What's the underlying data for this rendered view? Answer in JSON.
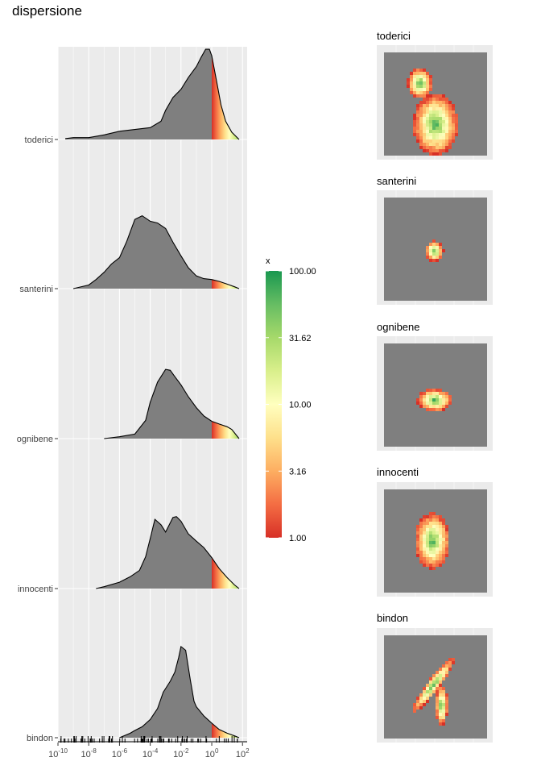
{
  "title": "dispersione",
  "colors": {
    "panel_bg": "#ebebeb",
    "grid_major": "#ffffff",
    "ridge_fill": "#7f7f7f",
    "map_bg": "#7f7f7f",
    "low": "#d73027",
    "mid": "#ffffbf",
    "high": "#1a9850"
  },
  "chart_data": [
    {
      "type": "area",
      "subtype": "ridgeline-density",
      "title": "",
      "xlabel": "",
      "ylabel": "",
      "x_scale": "log10",
      "xlim": [
        1e-10,
        200
      ],
      "x_tick_labels": [
        "10-10",
        "10-8",
        "10-6",
        "10-4",
        "10-2",
        "100",
        "102"
      ],
      "x_tick_values": [
        1e-10,
        1e-08,
        1e-06,
        0.0001,
        0.01,
        1,
        100
      ],
      "gradient_fill_above_x": 1,
      "rug": true,
      "grid": true,
      "categories": [
        "toderici",
        "santerini",
        "ognibene",
        "innocenti",
        "bindon"
      ],
      "series": [
        {
          "category": "toderici",
          "x": [
            3e-10,
            1e-09,
            1e-08,
            1e-07,
            1e-06,
            1e-05,
            0.0001,
            0.0005,
            0.001,
            0.003,
            0.01,
            0.03,
            0.1,
            0.2,
            0.4,
            0.7,
            1,
            2,
            4,
            8,
            20,
            60
          ],
          "density": [
            0.01,
            0.02,
            0.02,
            0.05,
            0.09,
            0.11,
            0.13,
            0.2,
            0.32,
            0.46,
            0.55,
            0.68,
            0.8,
            0.9,
            0.99,
            0.99,
            0.92,
            0.65,
            0.38,
            0.2,
            0.08,
            0.0
          ]
        },
        {
          "category": "santerini",
          "x": [
            1e-09,
            1e-08,
            3e-08,
            1e-07,
            3e-07,
            1e-06,
            3e-06,
            1e-05,
            3e-05,
            0.0001,
            0.0003,
            0.001,
            0.003,
            0.01,
            0.03,
            0.1,
            0.3,
            1,
            3,
            10,
            30,
            60
          ],
          "density": [
            0.0,
            0.04,
            0.1,
            0.18,
            0.27,
            0.34,
            0.52,
            0.76,
            0.8,
            0.74,
            0.72,
            0.66,
            0.51,
            0.36,
            0.23,
            0.14,
            0.11,
            0.1,
            0.08,
            0.05,
            0.02,
            0.0
          ]
        },
        {
          "category": "ognibene",
          "x": [
            1e-07,
            1e-06,
            1e-05,
            5e-05,
            0.0001,
            0.0003,
            0.001,
            0.002,
            0.004,
            0.01,
            0.03,
            0.1,
            0.3,
            1,
            3,
            10,
            20,
            60
          ],
          "density": [
            0.0,
            0.02,
            0.05,
            0.2,
            0.4,
            0.62,
            0.76,
            0.75,
            0.68,
            0.59,
            0.46,
            0.34,
            0.25,
            0.19,
            0.16,
            0.13,
            0.1,
            0.0
          ]
        },
        {
          "category": "innocenti",
          "x": [
            3e-08,
            1e-07,
            1e-06,
            5e-06,
            2e-05,
            5e-05,
            0.0001,
            0.0002,
            0.0005,
            0.001,
            0.003,
            0.005,
            0.01,
            0.03,
            0.1,
            0.3,
            1,
            3,
            10,
            30,
            60
          ],
          "density": [
            0.0,
            0.02,
            0.07,
            0.13,
            0.2,
            0.35,
            0.55,
            0.76,
            0.7,
            0.62,
            0.78,
            0.79,
            0.74,
            0.6,
            0.52,
            0.45,
            0.34,
            0.22,
            0.12,
            0.04,
            0.0
          ]
        },
        {
          "category": "bindon",
          "x": [
            1e-06,
            5e-06,
            1e-05,
            3e-05,
            0.0001,
            0.0003,
            0.0007,
            0.001,
            0.002,
            0.004,
            0.007,
            0.01,
            0.02,
            0.04,
            0.07,
            0.1,
            0.3,
            1,
            3,
            10,
            30,
            60
          ],
          "density": [
            0.0,
            0.05,
            0.08,
            0.12,
            0.2,
            0.32,
            0.5,
            0.54,
            0.62,
            0.72,
            0.88,
            1.0,
            0.96,
            0.64,
            0.4,
            0.34,
            0.24,
            0.16,
            0.09,
            0.05,
            0.02,
            0.0
          ]
        }
      ]
    },
    {
      "type": "heatmap",
      "subtype": "color-legend",
      "title": "x",
      "scale": "log10",
      "range": [
        1,
        100
      ],
      "tick_labels": [
        "100.00",
        "31.62",
        "10.00",
        "3.16",
        "1.00"
      ],
      "tick_values": [
        100,
        31.62,
        10,
        3.16,
        1
      ]
    },
    {
      "type": "heatmap",
      "subtype": "spatial-maps",
      "panels": [
        {
          "title": "toderici",
          "extent": "large"
        },
        {
          "title": "santerini",
          "extent": "small"
        },
        {
          "title": "ognibene",
          "extent": "medium"
        },
        {
          "title": "innocenti",
          "extent": "medium-large"
        },
        {
          "title": "bindon",
          "extent": "elongated"
        }
      ]
    }
  ]
}
